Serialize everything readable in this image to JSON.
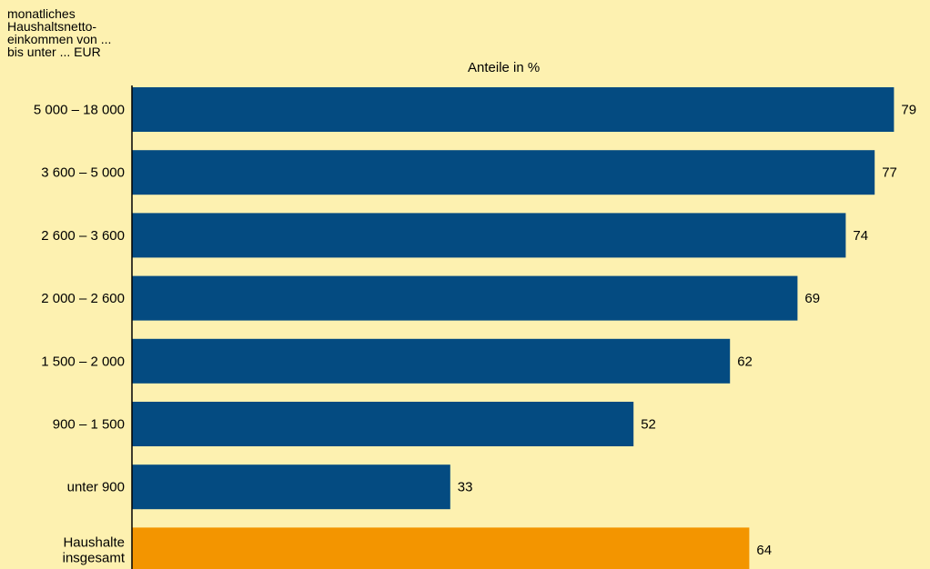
{
  "chart_data": {
    "type": "bar",
    "orientation": "horizontal",
    "ylabel": "monatliches\nHaushaltsnetto-\neinkommen von ...\nbis unter ... EUR",
    "xlabel": "Anteile in %",
    "categories": [
      "5 000 – 18 000",
      "3 600 – 5 000",
      "2 600 – 3 600",
      "2 000 – 2 600",
      "1 500 – 2 000",
      "900 – 1 500",
      "unter 900",
      "Haushalte\ninsgesamt"
    ],
    "values": [
      79,
      77,
      74,
      69,
      62,
      52,
      33,
      64
    ],
    "bar_colors": [
      "#044b81",
      "#044b81",
      "#044b81",
      "#044b81",
      "#044b81",
      "#044b81",
      "#044b81",
      "#f39500"
    ],
    "xlim": [
      0,
      80
    ],
    "grid": false,
    "legend": "none"
  },
  "colors": {
    "background": "#fdf1b0",
    "axis": "#000000"
  }
}
